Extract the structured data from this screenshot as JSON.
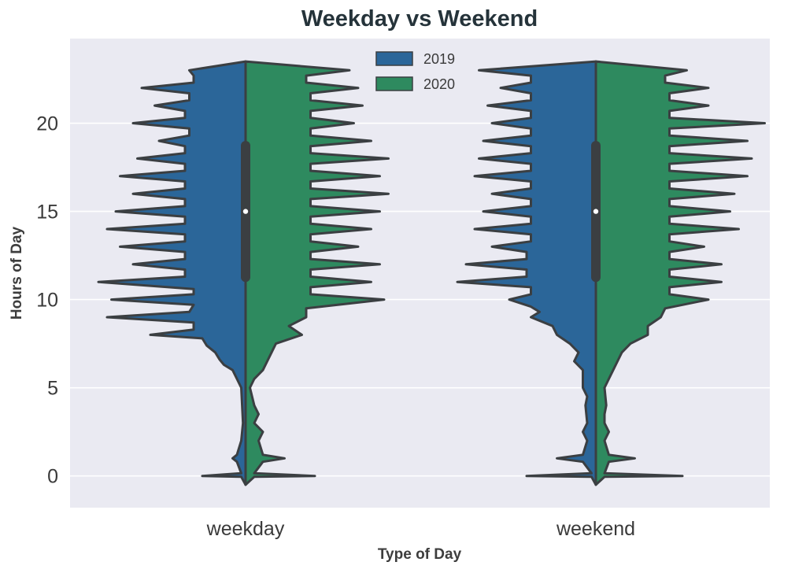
{
  "chart_data": {
    "type": "violin",
    "title": "Weekday vs Weekend",
    "xlabel": "Type of Day",
    "ylabel": "Hours of Day",
    "categories": [
      "weekday",
      "weekend"
    ],
    "ylim": [
      -1.8,
      24.8
    ],
    "yticks": [
      0,
      5,
      10,
      15,
      20
    ],
    "grid": "horizontal",
    "legend_position": "top-center",
    "split": true,
    "series": [
      {
        "name": "2019",
        "color": "#2b6699",
        "density": {
          "weekday": [
            [
              -0.5,
              0
            ],
            [
              -0.05,
              0.05
            ],
            [
              0,
              0.5
            ],
            [
              0.15,
              0.05
            ],
            [
              0.8,
              0.1
            ],
            [
              1,
              0.15
            ],
            [
              1.2,
              0.1
            ],
            [
              2,
              0.05
            ],
            [
              3,
              0.03
            ],
            [
              4,
              0.04
            ],
            [
              5,
              0.05
            ],
            [
              5.5,
              0.1
            ],
            [
              6,
              0.15
            ],
            [
              6.3,
              0.25
            ],
            [
              6.6,
              0.3
            ],
            [
              7,
              0.35
            ],
            [
              7.4,
              0.45
            ],
            [
              7.8,
              0.5
            ],
            [
              8,
              1.1
            ],
            [
              8.3,
              0.6
            ],
            [
              8.7,
              0.6
            ],
            [
              9,
              1.6
            ],
            [
              9.3,
              0.65
            ],
            [
              9.7,
              0.6
            ],
            [
              10,
              1.55
            ],
            [
              10.3,
              0.6
            ],
            [
              10.6,
              0.6
            ],
            [
              11,
              1.7
            ],
            [
              11.3,
              0.7
            ],
            [
              11.7,
              0.7
            ],
            [
              12,
              1.3
            ],
            [
              12.3,
              0.7
            ],
            [
              12.7,
              0.7
            ],
            [
              13,
              1.45
            ],
            [
              13.3,
              0.7
            ],
            [
              13.7,
              0.7
            ],
            [
              14,
              1.6
            ],
            [
              14.3,
              0.7
            ],
            [
              14.7,
              0.7
            ],
            [
              15,
              1.5
            ],
            [
              15.3,
              0.7
            ],
            [
              15.7,
              0.7
            ],
            [
              16,
              1.3
            ],
            [
              16.3,
              0.7
            ],
            [
              16.7,
              0.7
            ],
            [
              17,
              1.45
            ],
            [
              17.3,
              0.7
            ],
            [
              17.7,
              0.7
            ],
            [
              18,
              1.25
            ],
            [
              18.3,
              0.7
            ],
            [
              18.7,
              0.7
            ],
            [
              19,
              1.0
            ],
            [
              19.3,
              0.65
            ],
            [
              19.7,
              0.65
            ],
            [
              20,
              1.3
            ],
            [
              20.3,
              0.7
            ],
            [
              20.7,
              0.7
            ],
            [
              21,
              1.05
            ],
            [
              21.3,
              0.65
            ],
            [
              21.7,
              0.65
            ],
            [
              22,
              1.2
            ],
            [
              22.3,
              0.6
            ],
            [
              22.7,
              0.6
            ],
            [
              23,
              0.65
            ],
            [
              23.5,
              0
            ]
          ],
          "weekend": [
            [
              -0.5,
              0
            ],
            [
              -0.05,
              0.05
            ],
            [
              0,
              0.8
            ],
            [
              0.15,
              0.05
            ],
            [
              0.8,
              0.15
            ],
            [
              1,
              0.45
            ],
            [
              1.2,
              0.15
            ],
            [
              2,
              0.1
            ],
            [
              2.5,
              0.15
            ],
            [
              3,
              0.1
            ],
            [
              4,
              0.12
            ],
            [
              4.5,
              0.1
            ],
            [
              5,
              0.15
            ],
            [
              6,
              0.15
            ],
            [
              6.5,
              0.25
            ],
            [
              7,
              0.2
            ],
            [
              7.5,
              0.3
            ],
            [
              8,
              0.45
            ],
            [
              8.5,
              0.5
            ],
            [
              9,
              0.75
            ],
            [
              9.3,
              0.65
            ],
            [
              9.6,
              0.75
            ],
            [
              10,
              1.0
            ],
            [
              10.3,
              0.75
            ],
            [
              10.7,
              0.75
            ],
            [
              11,
              1.6
            ],
            [
              11.3,
              0.8
            ],
            [
              11.7,
              0.8
            ],
            [
              12,
              1.5
            ],
            [
              12.3,
              0.8
            ],
            [
              12.7,
              0.8
            ],
            [
              13,
              1.2
            ],
            [
              13.3,
              0.75
            ],
            [
              13.7,
              0.75
            ],
            [
              14,
              1.4
            ],
            [
              14.3,
              0.75
            ],
            [
              14.7,
              0.75
            ],
            [
              15,
              1.3
            ],
            [
              15.3,
              0.75
            ],
            [
              15.7,
              0.75
            ],
            [
              16,
              1.2
            ],
            [
              16.3,
              0.75
            ],
            [
              16.7,
              0.75
            ],
            [
              17,
              1.4
            ],
            [
              17.3,
              0.75
            ],
            [
              17.7,
              0.75
            ],
            [
              18,
              1.35
            ],
            [
              18.3,
              0.75
            ],
            [
              18.7,
              0.75
            ],
            [
              19,
              1.3
            ],
            [
              19.3,
              0.75
            ],
            [
              19.7,
              0.75
            ],
            [
              20,
              1.2
            ],
            [
              20.3,
              0.75
            ],
            [
              20.7,
              0.75
            ],
            [
              21,
              1.25
            ],
            [
              21.3,
              0.75
            ],
            [
              21.7,
              0.75
            ],
            [
              22,
              1.1
            ],
            [
              22.3,
              0.75
            ],
            [
              22.7,
              0.75
            ],
            [
              23,
              1.35
            ],
            [
              23.5,
              0
            ]
          ]
        }
      },
      {
        "name": "2020",
        "color": "#2e8a5f",
        "density": {
          "weekday": [
            [
              -0.5,
              0
            ],
            [
              -0.05,
              0.1
            ],
            [
              0,
              0.8
            ],
            [
              0.15,
              0.1
            ],
            [
              0.8,
              0.2
            ],
            [
              1,
              0.45
            ],
            [
              1.2,
              0.2
            ],
            [
              2,
              0.15
            ],
            [
              2.5,
              0.2
            ],
            [
              3,
              0.1
            ],
            [
              3.5,
              0.15
            ],
            [
              4,
              0.1
            ],
            [
              5,
              0.05
            ],
            [
              5.5,
              0.1
            ],
            [
              6,
              0.2
            ],
            [
              6.5,
              0.25
            ],
            [
              7,
              0.3
            ],
            [
              7.5,
              0.35
            ],
            [
              8,
              0.65
            ],
            [
              8.5,
              0.5
            ],
            [
              9,
              0.7
            ],
            [
              9.5,
              0.7
            ],
            [
              10,
              1.6
            ],
            [
              10.3,
              0.75
            ],
            [
              10.7,
              0.75
            ],
            [
              11,
              1.45
            ],
            [
              11.3,
              0.75
            ],
            [
              11.7,
              0.75
            ],
            [
              12,
              1.55
            ],
            [
              12.3,
              0.75
            ],
            [
              12.7,
              0.75
            ],
            [
              13,
              1.3
            ],
            [
              13.3,
              0.75
            ],
            [
              13.7,
              0.75
            ],
            [
              14,
              1.45
            ],
            [
              14.3,
              0.75
            ],
            [
              14.7,
              0.75
            ],
            [
              15,
              1.55
            ],
            [
              15.3,
              0.75
            ],
            [
              15.7,
              0.75
            ],
            [
              16,
              1.65
            ],
            [
              16.3,
              0.75
            ],
            [
              16.7,
              0.75
            ],
            [
              17,
              1.55
            ],
            [
              17.3,
              0.75
            ],
            [
              17.7,
              0.75
            ],
            [
              18,
              1.65
            ],
            [
              18.3,
              0.75
            ],
            [
              18.7,
              0.75
            ],
            [
              19,
              1.45
            ],
            [
              19.3,
              0.75
            ],
            [
              19.7,
              0.75
            ],
            [
              20,
              1.25
            ],
            [
              20.3,
              0.75
            ],
            [
              20.7,
              0.75
            ],
            [
              21,
              1.35
            ],
            [
              21.3,
              0.75
            ],
            [
              21.7,
              0.75
            ],
            [
              22,
              1.3
            ],
            [
              22.3,
              0.7
            ],
            [
              22.7,
              0.7
            ],
            [
              23,
              1.2
            ],
            [
              23.5,
              0
            ]
          ],
          "weekend": [
            [
              -0.5,
              0
            ],
            [
              -0.05,
              0.1
            ],
            [
              0,
              1.0
            ],
            [
              0.15,
              0.1
            ],
            [
              0.8,
              0.15
            ],
            [
              1,
              0.45
            ],
            [
              1.2,
              0.15
            ],
            [
              2,
              0.1
            ],
            [
              2.5,
              0.15
            ],
            [
              3,
              0.1
            ],
            [
              3.5,
              0.1
            ],
            [
              4,
              0.12
            ],
            [
              5,
              0.1
            ],
            [
              5.5,
              0.15
            ],
            [
              6,
              0.2
            ],
            [
              6.5,
              0.25
            ],
            [
              7,
              0.3
            ],
            [
              7.5,
              0.4
            ],
            [
              8,
              0.6
            ],
            [
              8.5,
              0.6
            ],
            [
              9,
              0.75
            ],
            [
              9.5,
              0.8
            ],
            [
              10,
              1.3
            ],
            [
              10.3,
              0.85
            ],
            [
              10.7,
              0.85
            ],
            [
              11,
              1.45
            ],
            [
              11.3,
              0.85
            ],
            [
              11.7,
              0.85
            ],
            [
              12,
              1.45
            ],
            [
              12.3,
              0.85
            ],
            [
              12.7,
              0.85
            ],
            [
              13,
              1.25
            ],
            [
              13.3,
              0.85
            ],
            [
              13.7,
              0.85
            ],
            [
              14,
              1.65
            ],
            [
              14.3,
              0.85
            ],
            [
              14.7,
              0.85
            ],
            [
              15,
              1.55
            ],
            [
              15.3,
              0.85
            ],
            [
              15.7,
              0.85
            ],
            [
              16,
              1.6
            ],
            [
              16.3,
              0.85
            ],
            [
              16.7,
              0.85
            ],
            [
              17,
              1.75
            ],
            [
              17.3,
              0.85
            ],
            [
              17.7,
              0.85
            ],
            [
              18,
              1.8
            ],
            [
              18.3,
              0.85
            ],
            [
              18.7,
              0.85
            ],
            [
              19,
              1.75
            ],
            [
              19.3,
              0.85
            ],
            [
              19.7,
              0.85
            ],
            [
              20,
              1.95
            ],
            [
              20.3,
              0.85
            ],
            [
              20.7,
              0.85
            ],
            [
              21,
              1.3
            ],
            [
              21.3,
              0.85
            ],
            [
              21.7,
              0.85
            ],
            [
              22,
              1.3
            ],
            [
              22.3,
              0.8
            ],
            [
              22.7,
              0.8
            ],
            [
              23,
              1.05
            ],
            [
              23.5,
              0
            ]
          ]
        }
      }
    ],
    "box": {
      "weekday": {
        "q1": 11,
        "median": 15,
        "q3": 19,
        "whisker_low": 5,
        "whisker_high": 23.5
      },
      "weekend": {
        "q1": 11,
        "median": 15,
        "q3": 19,
        "whisker_low": 0,
        "whisker_high": 23.5
      }
    },
    "colors": {
      "plot_background": "#eaeaf2",
      "gridline": "#ffffff",
      "outline": "#3b3f42"
    }
  }
}
